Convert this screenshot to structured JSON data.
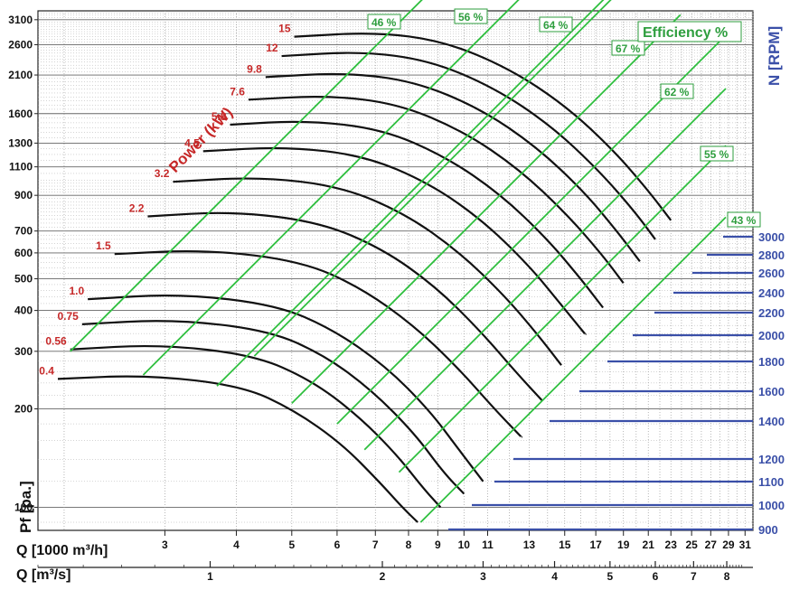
{
  "chart_data": {
    "type": "line",
    "xlabel": "Q [1000 m³/h]",
    "x2label": "Q [m³/s]",
    "ylabel": "Pf [pa.]",
    "rpm_label": "N [RPM]",
    "power_label": "Power (kW)",
    "efficiency_label": "Efficiency %",
    "x_scale": "log",
    "y_scale": "log",
    "xlim": [
      1.8,
      32
    ],
    "ylim": [
      85,
      3300
    ],
    "x_ticks": [
      3,
      4,
      5,
      6,
      7,
      8,
      9,
      10,
      11,
      13,
      15,
      17,
      19,
      21,
      23,
      25,
      27,
      29,
      31
    ],
    "x2_ticks": [
      1,
      2,
      3,
      4,
      5,
      6,
      7,
      8
    ],
    "y_ticks": [
      100,
      200,
      300,
      400,
      500,
      600,
      700,
      900,
      1100,
      1300,
      1600,
      2100,
      2600,
      3100
    ],
    "grid": true,
    "colors": {
      "curves": "#111111",
      "efficiency": "#2fbf3f",
      "rpm": "#3a4fa8",
      "power": "#c62828",
      "grid": "#888888"
    },
    "rpm_values": [
      900,
      1000,
      1100,
      1200,
      1400,
      1600,
      1800,
      2000,
      2200,
      2400,
      2600,
      2800,
      3000
    ],
    "series": [
      {
        "power": "0.4",
        "points": [
          [
            1.95,
            247
          ],
          [
            2.8,
            254
          ],
          [
            4.1,
            235
          ],
          [
            5.05,
            198
          ],
          [
            6.1,
            157
          ],
          [
            7.1,
            120
          ],
          [
            7.8,
            100
          ],
          [
            8.3,
            90
          ]
        ]
      },
      {
        "power": "0.56",
        "points": [
          [
            2.05,
            304
          ],
          [
            2.95,
            315
          ],
          [
            4.3,
            292
          ],
          [
            5.4,
            245
          ],
          [
            6.5,
            192
          ],
          [
            7.6,
            146
          ],
          [
            8.5,
            114
          ],
          [
            9.1,
            100
          ]
        ]
      },
      {
        "power": "0.75",
        "points": [
          [
            2.15,
            363
          ],
          [
            3.1,
            376
          ],
          [
            4.55,
            348
          ],
          [
            5.7,
            292
          ],
          [
            6.9,
            228
          ],
          [
            8.2,
            168
          ],
          [
            9.2,
            128
          ],
          [
            10,
            110
          ]
        ]
      },
      {
        "power": "1.0",
        "points": [
          [
            2.2,
            433
          ],
          [
            3.2,
            450
          ],
          [
            4.7,
            416
          ],
          [
            5.9,
            350
          ],
          [
            7.3,
            270
          ],
          [
            8.7,
            198
          ],
          [
            9.8,
            150
          ],
          [
            10.8,
            120
          ]
        ]
      },
      {
        "power": "1.5",
        "points": [
          [
            2.45,
            595
          ],
          [
            3.55,
            614
          ],
          [
            5.2,
            566
          ],
          [
            6.6,
            470
          ],
          [
            8.2,
            358
          ],
          [
            9.8,
            265
          ],
          [
            11.3,
            200
          ],
          [
            12.6,
            164
          ]
        ]
      },
      {
        "power": "2.2",
        "points": [
          [
            2.8,
            776
          ],
          [
            3.95,
            804
          ],
          [
            5.6,
            745
          ],
          [
            7.2,
            618
          ],
          [
            8.9,
            475
          ],
          [
            10.7,
            345
          ],
          [
            12.3,
            260
          ],
          [
            13.7,
            212
          ]
        ]
      },
      {
        "power": "3.2",
        "points": [
          [
            3.1,
            990
          ],
          [
            4.4,
            1025
          ],
          [
            6.1,
            958
          ],
          [
            7.9,
            790
          ],
          [
            9.8,
            605
          ],
          [
            11.8,
            442
          ],
          [
            13.5,
            335
          ],
          [
            14.8,
            272
          ]
        ]
      },
      {
        "power": "4.5",
        "points": [
          [
            3.5,
            1228
          ],
          [
            4.9,
            1268
          ],
          [
            6.7,
            1190
          ],
          [
            8.7,
            980
          ],
          [
            10.8,
            752
          ],
          [
            13,
            548
          ],
          [
            14.8,
            416
          ],
          [
            16.3,
            338
          ]
        ]
      },
      {
        "power": "5.8",
        "points": [
          [
            3.9,
            1480
          ],
          [
            5.3,
            1525
          ],
          [
            7.2,
            1435
          ],
          [
            9.3,
            1180
          ],
          [
            11.6,
            905
          ],
          [
            14,
            660
          ],
          [
            16,
            500
          ],
          [
            17.5,
            408
          ]
        ]
      },
      {
        "power": "7.6",
        "points": [
          [
            4.2,
            1765
          ],
          [
            5.8,
            1820
          ],
          [
            7.7,
            1712
          ],
          [
            10,
            1410
          ],
          [
            12.5,
            1080
          ],
          [
            15.1,
            790
          ],
          [
            17.4,
            595
          ],
          [
            19,
            485
          ]
        ]
      },
      {
        "power": "9.8",
        "points": [
          [
            4.5,
            2070
          ],
          [
            6.2,
            2135
          ],
          [
            8.2,
            2010
          ],
          [
            10.7,
            1655
          ],
          [
            13.4,
            1265
          ],
          [
            16.2,
            925
          ],
          [
            18.5,
            700
          ],
          [
            20.3,
            565
          ]
        ]
      },
      {
        "power": "12",
        "points": [
          [
            4.8,
            2400
          ],
          [
            6.6,
            2480
          ],
          [
            8.7,
            2330
          ],
          [
            11.3,
            1920
          ],
          [
            14.2,
            1470
          ],
          [
            17.2,
            1072
          ],
          [
            19.8,
            810
          ],
          [
            21.6,
            660
          ]
        ]
      },
      {
        "power": "15",
        "points": [
          [
            5.05,
            2750
          ],
          [
            7,
            2840
          ],
          [
            9.2,
            2670
          ],
          [
            12,
            2200
          ],
          [
            15.1,
            1685
          ],
          [
            18.3,
            1230
          ],
          [
            21,
            930
          ],
          [
            23,
            755
          ]
        ]
      }
    ],
    "efficiency": [
      "46 %",
      "56 %",
      "64 %",
      "67 %",
      "62 %",
      "55 %",
      "43 %"
    ]
  }
}
